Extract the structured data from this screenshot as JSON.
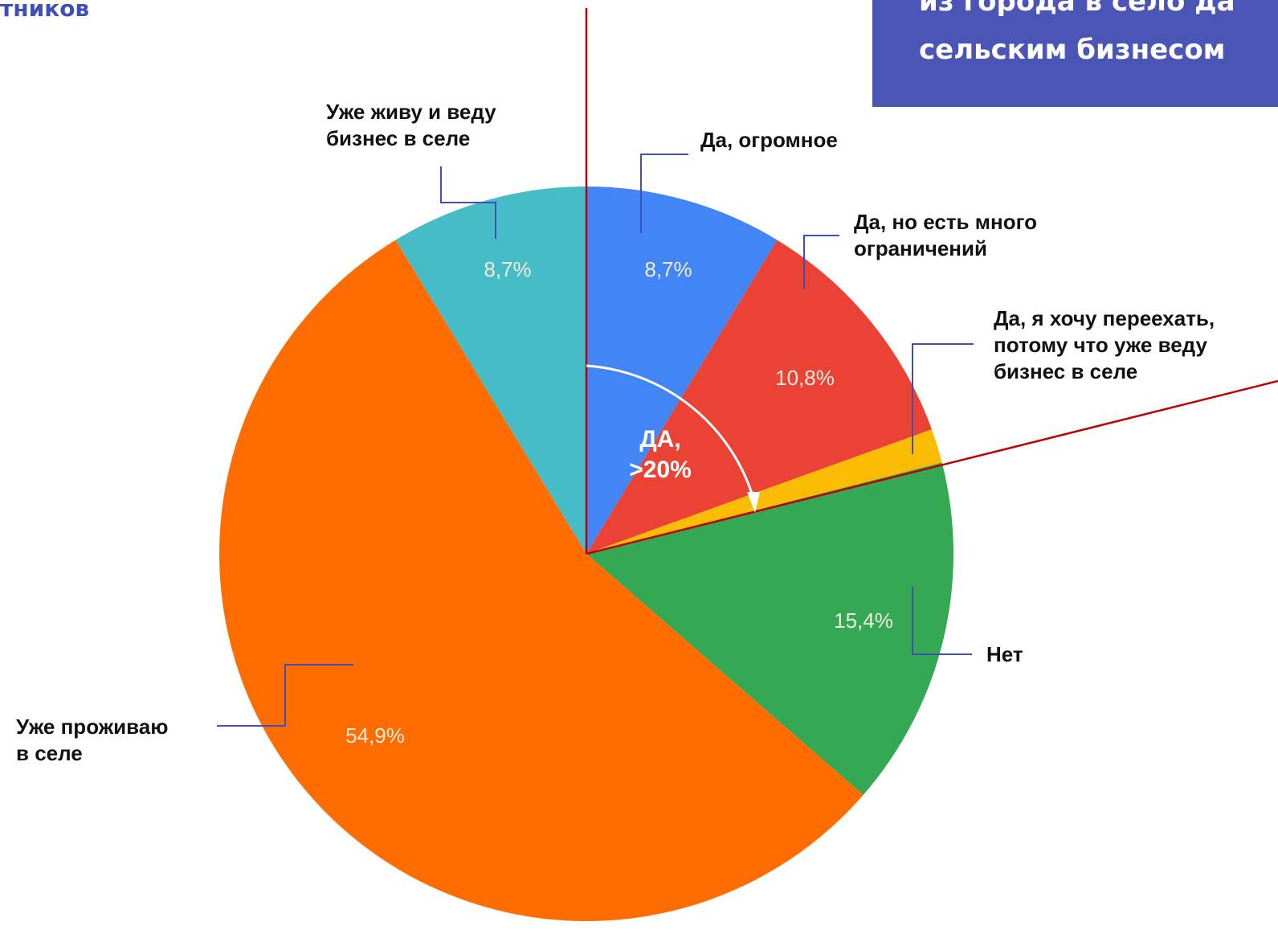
{
  "chart_data": {
    "type": "pie",
    "title": "тников",
    "header_box": [
      "из города в село да",
      "сельским бизнесом"
    ],
    "categories": [
      "Да, огромное",
      "Да, но есть много\nограничений",
      "Да, я хочу переехать,\nпотому что уже веду\nбизнес в селе",
      "Нет",
      "Уже проживаю\nв селе",
      "Уже живу и веду\nбизнес в селе"
    ],
    "values": [
      8.7,
      10.8,
      1.5,
      15.4,
      54.9,
      8.7
    ],
    "value_labels": [
      "8,7%",
      "10,8%",
      null,
      "15,4%",
      "54,9%",
      "8,7%"
    ],
    "colors": [
      "#4285f4",
      "#ea4335",
      "#fbbc04",
      "#34a853",
      "#ff6d01",
      "#46bdc6"
    ],
    "annotation": [
      "ДА,",
      ">20%"
    ]
  }
}
